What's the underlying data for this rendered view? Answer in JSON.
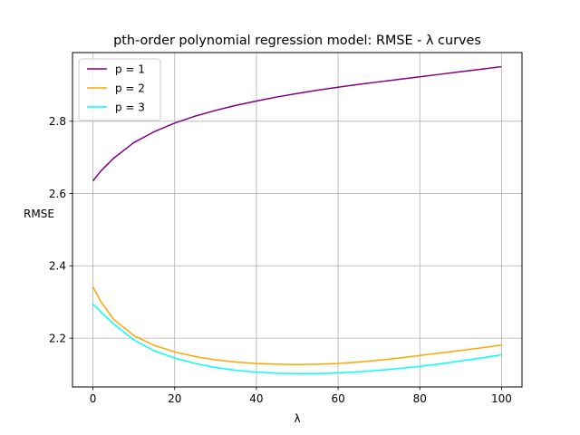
{
  "chart_data": {
    "type": "line",
    "title": "pth-order polynomial regression model: RMSE - λ curves",
    "xlabel": "λ",
    "ylabel": "RMSE",
    "xlim": [
      -5,
      105
    ],
    "ylim": [
      2.065,
      2.99
    ],
    "xticks": [
      0,
      20,
      40,
      60,
      80,
      100
    ],
    "yticks": [
      2.2,
      2.4,
      2.6,
      2.8
    ],
    "xtick_labels": [
      "0",
      "20",
      "40",
      "60",
      "80",
      "100"
    ],
    "ytick_labels": [
      "2.2",
      "2.4",
      "2.6",
      "2.8"
    ],
    "grid": true,
    "legend_position": "top-left",
    "x": [
      0,
      2,
      5,
      10,
      15,
      20,
      25,
      30,
      35,
      40,
      45,
      50,
      55,
      60,
      65,
      70,
      75,
      80,
      85,
      90,
      95,
      100
    ],
    "series": [
      {
        "name": "p = 1",
        "color": "#800080",
        "values": [
          2.635,
          2.663,
          2.697,
          2.741,
          2.771,
          2.795,
          2.814,
          2.83,
          2.844,
          2.856,
          2.867,
          2.877,
          2.886,
          2.894,
          2.902,
          2.909,
          2.916,
          2.923,
          2.93,
          2.937,
          2.944,
          2.951
        ]
      },
      {
        "name": "p = 2",
        "color": "#ffa500",
        "values": [
          2.342,
          2.3,
          2.253,
          2.207,
          2.18,
          2.162,
          2.149,
          2.14,
          2.134,
          2.13,
          2.128,
          2.127,
          2.128,
          2.13,
          2.134,
          2.139,
          2.145,
          2.152,
          2.159,
          2.166,
          2.173,
          2.181
        ]
      },
      {
        "name": "p = 3",
        "color": "#00ffff",
        "values": [
          2.294,
          2.272,
          2.24,
          2.195,
          2.165,
          2.145,
          2.13,
          2.119,
          2.111,
          2.106,
          2.103,
          2.102,
          2.102,
          2.104,
          2.107,
          2.111,
          2.116,
          2.122,
          2.129,
          2.137,
          2.145,
          2.154
        ]
      }
    ]
  }
}
